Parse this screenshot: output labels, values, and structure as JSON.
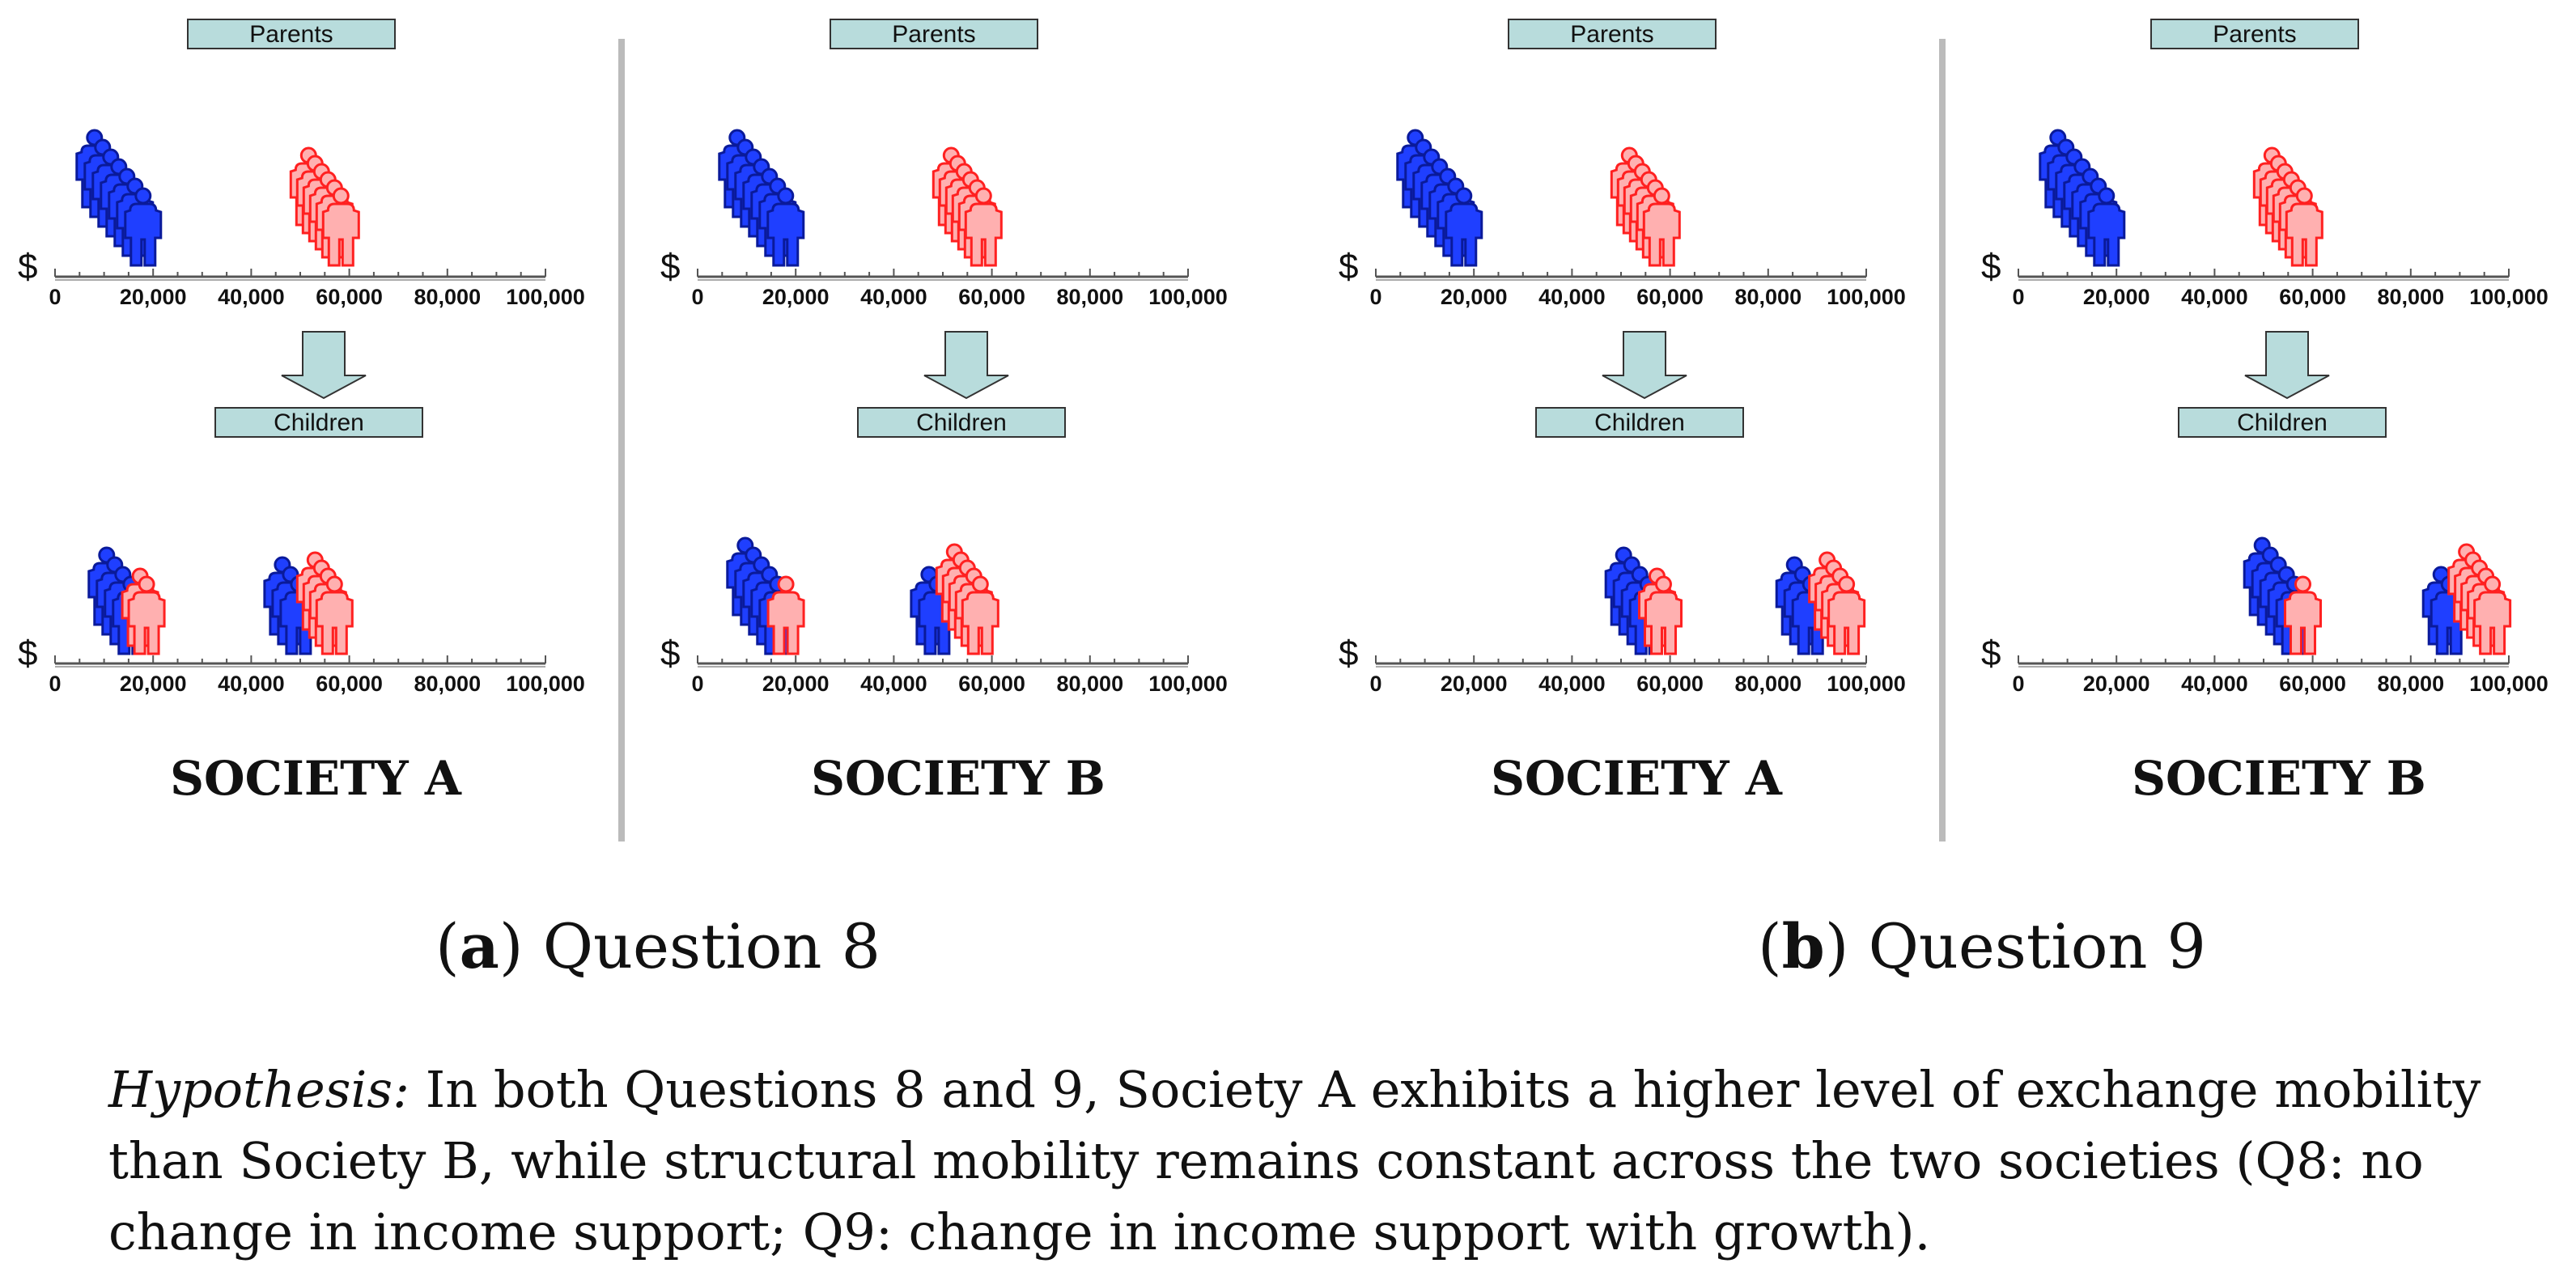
{
  "labels": {
    "parents": "Parents",
    "children": "Children",
    "currency": "$"
  },
  "axis_ticks": [
    "0",
    "20,000",
    "40,000",
    "60,000",
    "80,000",
    "100,000"
  ],
  "panels": [
    {
      "title": "SOCIETY  A",
      "parents": {
        "blue_center": 13000,
        "blue_count": 7,
        "red_center": 55000,
        "red_count": 6
      },
      "children": {
        "groups": [
          {
            "color": "blue",
            "center": 13000,
            "count": 4
          },
          {
            "color": "red",
            "center": 18000,
            "count": 2
          },
          {
            "color": "blue",
            "center": 48000,
            "count": 3
          },
          {
            "color": "red",
            "center": 55000,
            "count": 4
          }
        ]
      }
    },
    {
      "title": "SOCIETY B",
      "parents": {
        "blue_center": 13000,
        "blue_count": 7,
        "red_center": 55000,
        "red_count": 6
      },
      "children": {
        "groups": [
          {
            "color": "blue",
            "center": 13000,
            "count": 5
          },
          {
            "color": "red",
            "center": 18000,
            "count": 1
          },
          {
            "color": "blue",
            "center": 48000,
            "count": 2
          },
          {
            "color": "red",
            "center": 55000,
            "count": 5
          }
        ]
      }
    },
    {
      "title": "SOCIETY  A",
      "parents": {
        "blue_center": 13000,
        "blue_count": 7,
        "red_center": 55000,
        "red_count": 6
      },
      "children": {
        "groups": [
          {
            "color": "blue",
            "center": 53000,
            "count": 4
          },
          {
            "color": "red",
            "center": 58000,
            "count": 2
          },
          {
            "color": "blue",
            "center": 87000,
            "count": 3
          },
          {
            "color": "red",
            "center": 94000,
            "count": 4
          }
        ]
      }
    },
    {
      "title": "SOCIETY B",
      "parents": {
        "blue_center": 13000,
        "blue_count": 7,
        "red_center": 55000,
        "red_count": 6
      },
      "children": {
        "groups": [
          {
            "color": "blue",
            "center": 53000,
            "count": 5
          },
          {
            "color": "red",
            "center": 58000,
            "count": 1
          },
          {
            "color": "blue",
            "center": 87000,
            "count": 2
          },
          {
            "color": "red",
            "center": 94000,
            "count": 5
          }
        ]
      }
    }
  ],
  "subcaptions": [
    {
      "letter": "(a)",
      "text": " Question 8"
    },
    {
      "letter": "(b)",
      "text": " Question 9"
    }
  ],
  "hypothesis": {
    "label": "Hypothesis:",
    "line1": " In both Questions 8 and 9, Society A exhibits a higher level of exchange mobility",
    "line2": "than Society B, while structural mobility remains constant across the two societies (Q8: no",
    "line3": "change in income support; Q9: change in income support with growth)."
  },
  "colors": {
    "blue_fill": "#1f3fff",
    "blue_stroke": "#0a1a9a",
    "red_fill": "#ffb0b0",
    "red_stroke": "#ff2020",
    "label_box": "#b8dcdc",
    "divider": "#bbbbbb"
  }
}
